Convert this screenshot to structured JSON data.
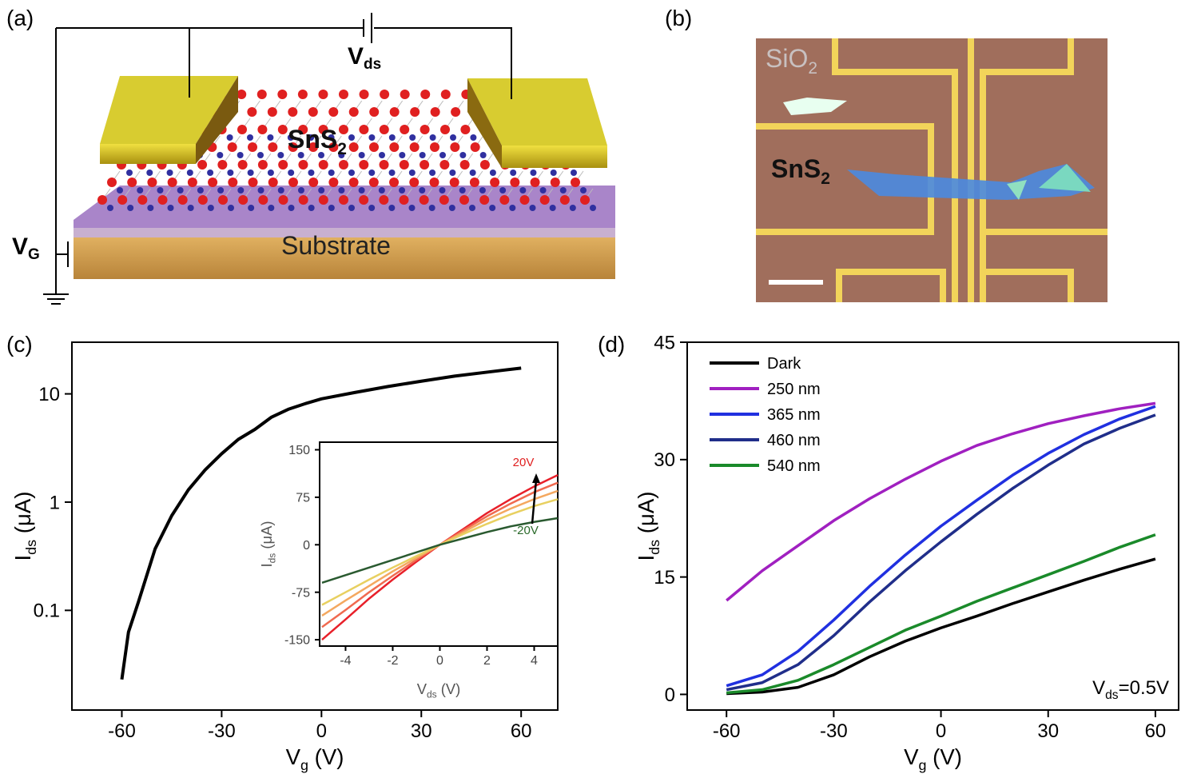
{
  "panel_labels": [
    "(a)",
    "(b)",
    "(c)",
    "(d)"
  ],
  "schematic": {
    "vds": {
      "text": "V",
      "sub": "ds"
    },
    "material": {
      "text": "SnS",
      "sub": "2"
    },
    "substrate": "Substrate",
    "vg": {
      "text": "V",
      "sub": "G"
    }
  },
  "micrograph": {
    "oxide": {
      "text": "SiO",
      "sub": "2"
    },
    "material": {
      "text": "SnS",
      "sub": "2"
    }
  },
  "chart_data": [
    {
      "type": "line",
      "log_y": true,
      "xlabel": {
        "text": "V",
        "sub": "g",
        "rest": " (V)"
      },
      "ylabel": {
        "text": "I",
        "sub": "ds",
        "rest": " (μA)"
      },
      "xlim": [
        -75,
        71
      ],
      "ylim": [
        0.012,
        30
      ],
      "xticks": [
        -60,
        -30,
        0,
        30,
        60
      ],
      "yticks": [
        0.1,
        1,
        10
      ],
      "series": [
        {
          "color": "#000000",
          "x": [
            -60,
            -58,
            -55,
            -50,
            -45,
            -40,
            -35,
            -30,
            -25,
            -20,
            -15,
            -10,
            -5,
            0,
            10,
            20,
            30,
            40,
            50,
            60
          ],
          "values": [
            0.023,
            0.063,
            0.12,
            0.37,
            0.75,
            1.3,
            1.98,
            2.8,
            3.8,
            4.7,
            6.1,
            7.2,
            8.1,
            9.0,
            10.3,
            11.7,
            13.1,
            14.6,
            15.9,
            17.3
          ]
        }
      ]
    },
    {
      "type": "line",
      "inset": true,
      "xlabel": {
        "text": "V",
        "sub": "ds",
        "rest": " (V)"
      },
      "ylabel": {
        "text": "I",
        "sub": "ds",
        "rest": " (μA)"
      },
      "xlim": [
        -5.1,
        5
      ],
      "ylim": [
        -160,
        162
      ],
      "xticks": [
        -4,
        -2,
        0,
        2,
        4
      ],
      "yticks": [
        -150,
        -75,
        0,
        75,
        150
      ],
      "annotations": [
        {
          "text": "20V",
          "color": "#e02020"
        },
        {
          "text": "-20V",
          "color": "#2a6a2a"
        }
      ],
      "series": [
        {
          "color": "#e8202a",
          "x": [
            -5,
            -4,
            -3,
            -2,
            -1,
            0,
            1,
            2,
            3,
            4,
            5
          ],
          "values": [
            -150,
            -118,
            -85,
            -55,
            -27,
            0,
            25,
            50,
            72,
            92,
            110
          ]
        },
        {
          "color": "#f06a50",
          "x": [
            -5,
            -4,
            -3,
            -2,
            -1,
            0,
            1,
            2,
            3,
            4,
            5
          ],
          "values": [
            -130,
            -103,
            -75,
            -49,
            -24,
            0,
            23,
            45,
            65,
            83,
            98
          ]
        },
        {
          "color": "#f4a860",
          "x": [
            -5,
            -4,
            -3,
            -2,
            -1,
            0,
            1,
            2,
            3,
            4,
            5
          ],
          "values": [
            -112,
            -88,
            -65,
            -42,
            -21,
            0,
            20,
            40,
            57,
            72,
            85
          ]
        },
        {
          "color": "#e8d060",
          "x": [
            -5,
            -4,
            -3,
            -2,
            -1,
            0,
            1,
            2,
            3,
            4,
            5
          ],
          "values": [
            -95,
            -75,
            -55,
            -36,
            -18,
            0,
            17,
            33,
            48,
            61,
            72
          ]
        },
        {
          "color": "#2a5a30",
          "x": [
            -5,
            -4,
            -3,
            -2,
            -1,
            0,
            1,
            2,
            3,
            4,
            5
          ],
          "values": [
            -60,
            -48,
            -36,
            -24,
            -12,
            0,
            10,
            20,
            29,
            36,
            42
          ]
        }
      ]
    },
    {
      "type": "line",
      "legend": "upper left",
      "xlabel": {
        "text": "V",
        "sub": "g",
        "rest": " (V)"
      },
      "ylabel": {
        "text": "I",
        "sub": "ds",
        "rest": " (μA)"
      },
      "annotation": {
        "text": "V",
        "sub": "ds",
        "rest": "=0.5V"
      },
      "xlim": [
        -71,
        66.5
      ],
      "ylim": [
        -2,
        45
      ],
      "xticks": [
        -60,
        -30,
        0,
        30,
        60
      ],
      "yticks": [
        0,
        15,
        30,
        45
      ],
      "series": [
        {
          "name": "Dark",
          "color": "#000000",
          "x": [
            -60,
            -50,
            -40,
            -30,
            -20,
            -10,
            0,
            10,
            20,
            30,
            40,
            50,
            60
          ],
          "values": [
            0.1,
            0.3,
            0.9,
            2.5,
            4.8,
            6.8,
            8.5,
            10,
            11.6,
            13.1,
            14.6,
            16,
            17.3
          ]
        },
        {
          "name": "250 nm",
          "color": "#a020c0",
          "x": [
            -60,
            -50,
            -40,
            -30,
            -20,
            -10,
            0,
            10,
            20,
            30,
            40,
            50,
            60
          ],
          "values": [
            12,
            15.8,
            19,
            22.2,
            25,
            27.5,
            29.8,
            31.8,
            33.3,
            34.6,
            35.6,
            36.5,
            37.2
          ]
        },
        {
          "name": "365 nm",
          "color": "#2030e0",
          "x": [
            -60,
            -50,
            -40,
            -30,
            -20,
            -10,
            0,
            10,
            20,
            30,
            40,
            50,
            60
          ],
          "values": [
            1.1,
            2.5,
            5.5,
            9.5,
            13.8,
            17.8,
            21.5,
            24.8,
            28,
            30.8,
            33.2,
            35.2,
            36.8
          ]
        },
        {
          "name": "460 nm",
          "color": "#202e8a",
          "x": [
            -60,
            -50,
            -40,
            -30,
            -20,
            -10,
            0,
            10,
            20,
            30,
            40,
            50,
            60
          ],
          "values": [
            0.6,
            1.5,
            3.8,
            7.5,
            11.8,
            15.8,
            19.5,
            23,
            26.3,
            29.3,
            32,
            34,
            35.7
          ]
        },
        {
          "name": "540 nm",
          "color": "#1a8a2a",
          "x": [
            -60,
            -50,
            -40,
            -30,
            -20,
            -10,
            0,
            10,
            20,
            30,
            40,
            50,
            60
          ],
          "values": [
            0.2,
            0.6,
            1.8,
            3.8,
            6,
            8.2,
            10,
            11.9,
            13.6,
            15.3,
            17,
            18.8,
            20.4
          ]
        }
      ]
    }
  ]
}
